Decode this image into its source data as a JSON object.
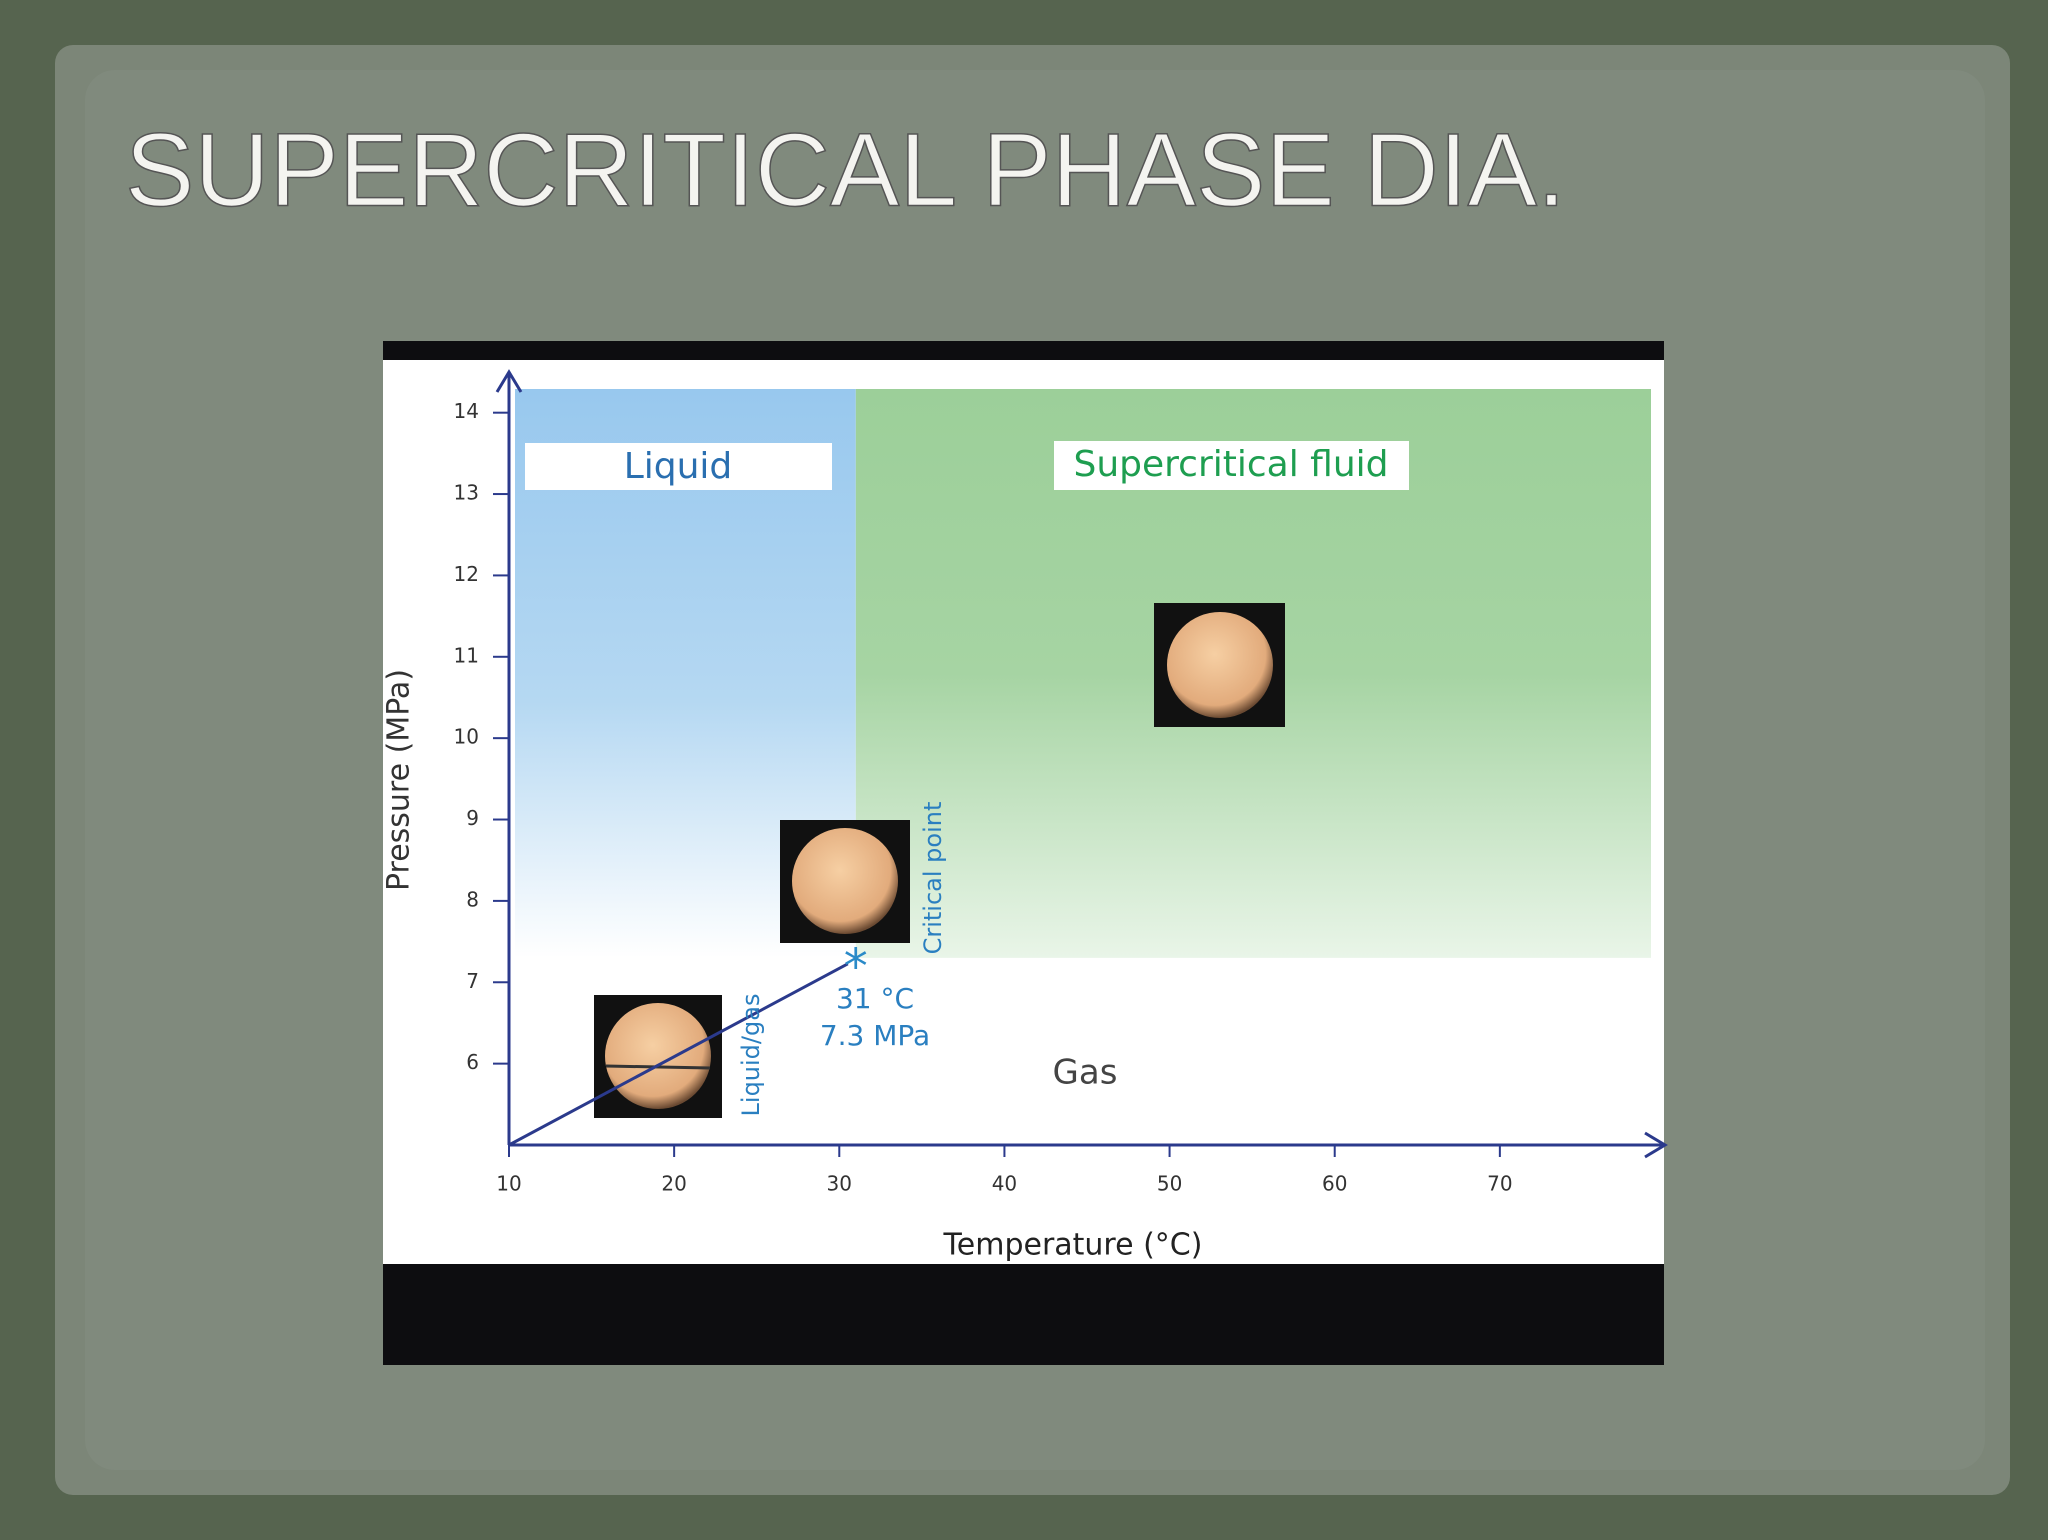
{
  "slide_title": "SUPERCRITICAL PHASE DIA.",
  "chart_data": {
    "type": "phase-diagram",
    "x_label": "Temperature (°C)",
    "y_label": "Pressure (MPa)",
    "xlim": [
      10,
      80
    ],
    "xticks": [
      10,
      20,
      30,
      40,
      50,
      60,
      70
    ],
    "ylim": [
      5,
      14.5
    ],
    "yticks": [
      6,
      7,
      8,
      9,
      10,
      11,
      12,
      13,
      14
    ],
    "regions": [
      "Liquid",
      "Supercritical fluid",
      "Gas"
    ],
    "boundary_labels": [
      "Liquid/gas",
      "Critical point"
    ],
    "critical_point": {
      "x": 31,
      "y": 7.3,
      "labels": [
        "31 °C",
        "7.3 MPa"
      ]
    }
  }
}
